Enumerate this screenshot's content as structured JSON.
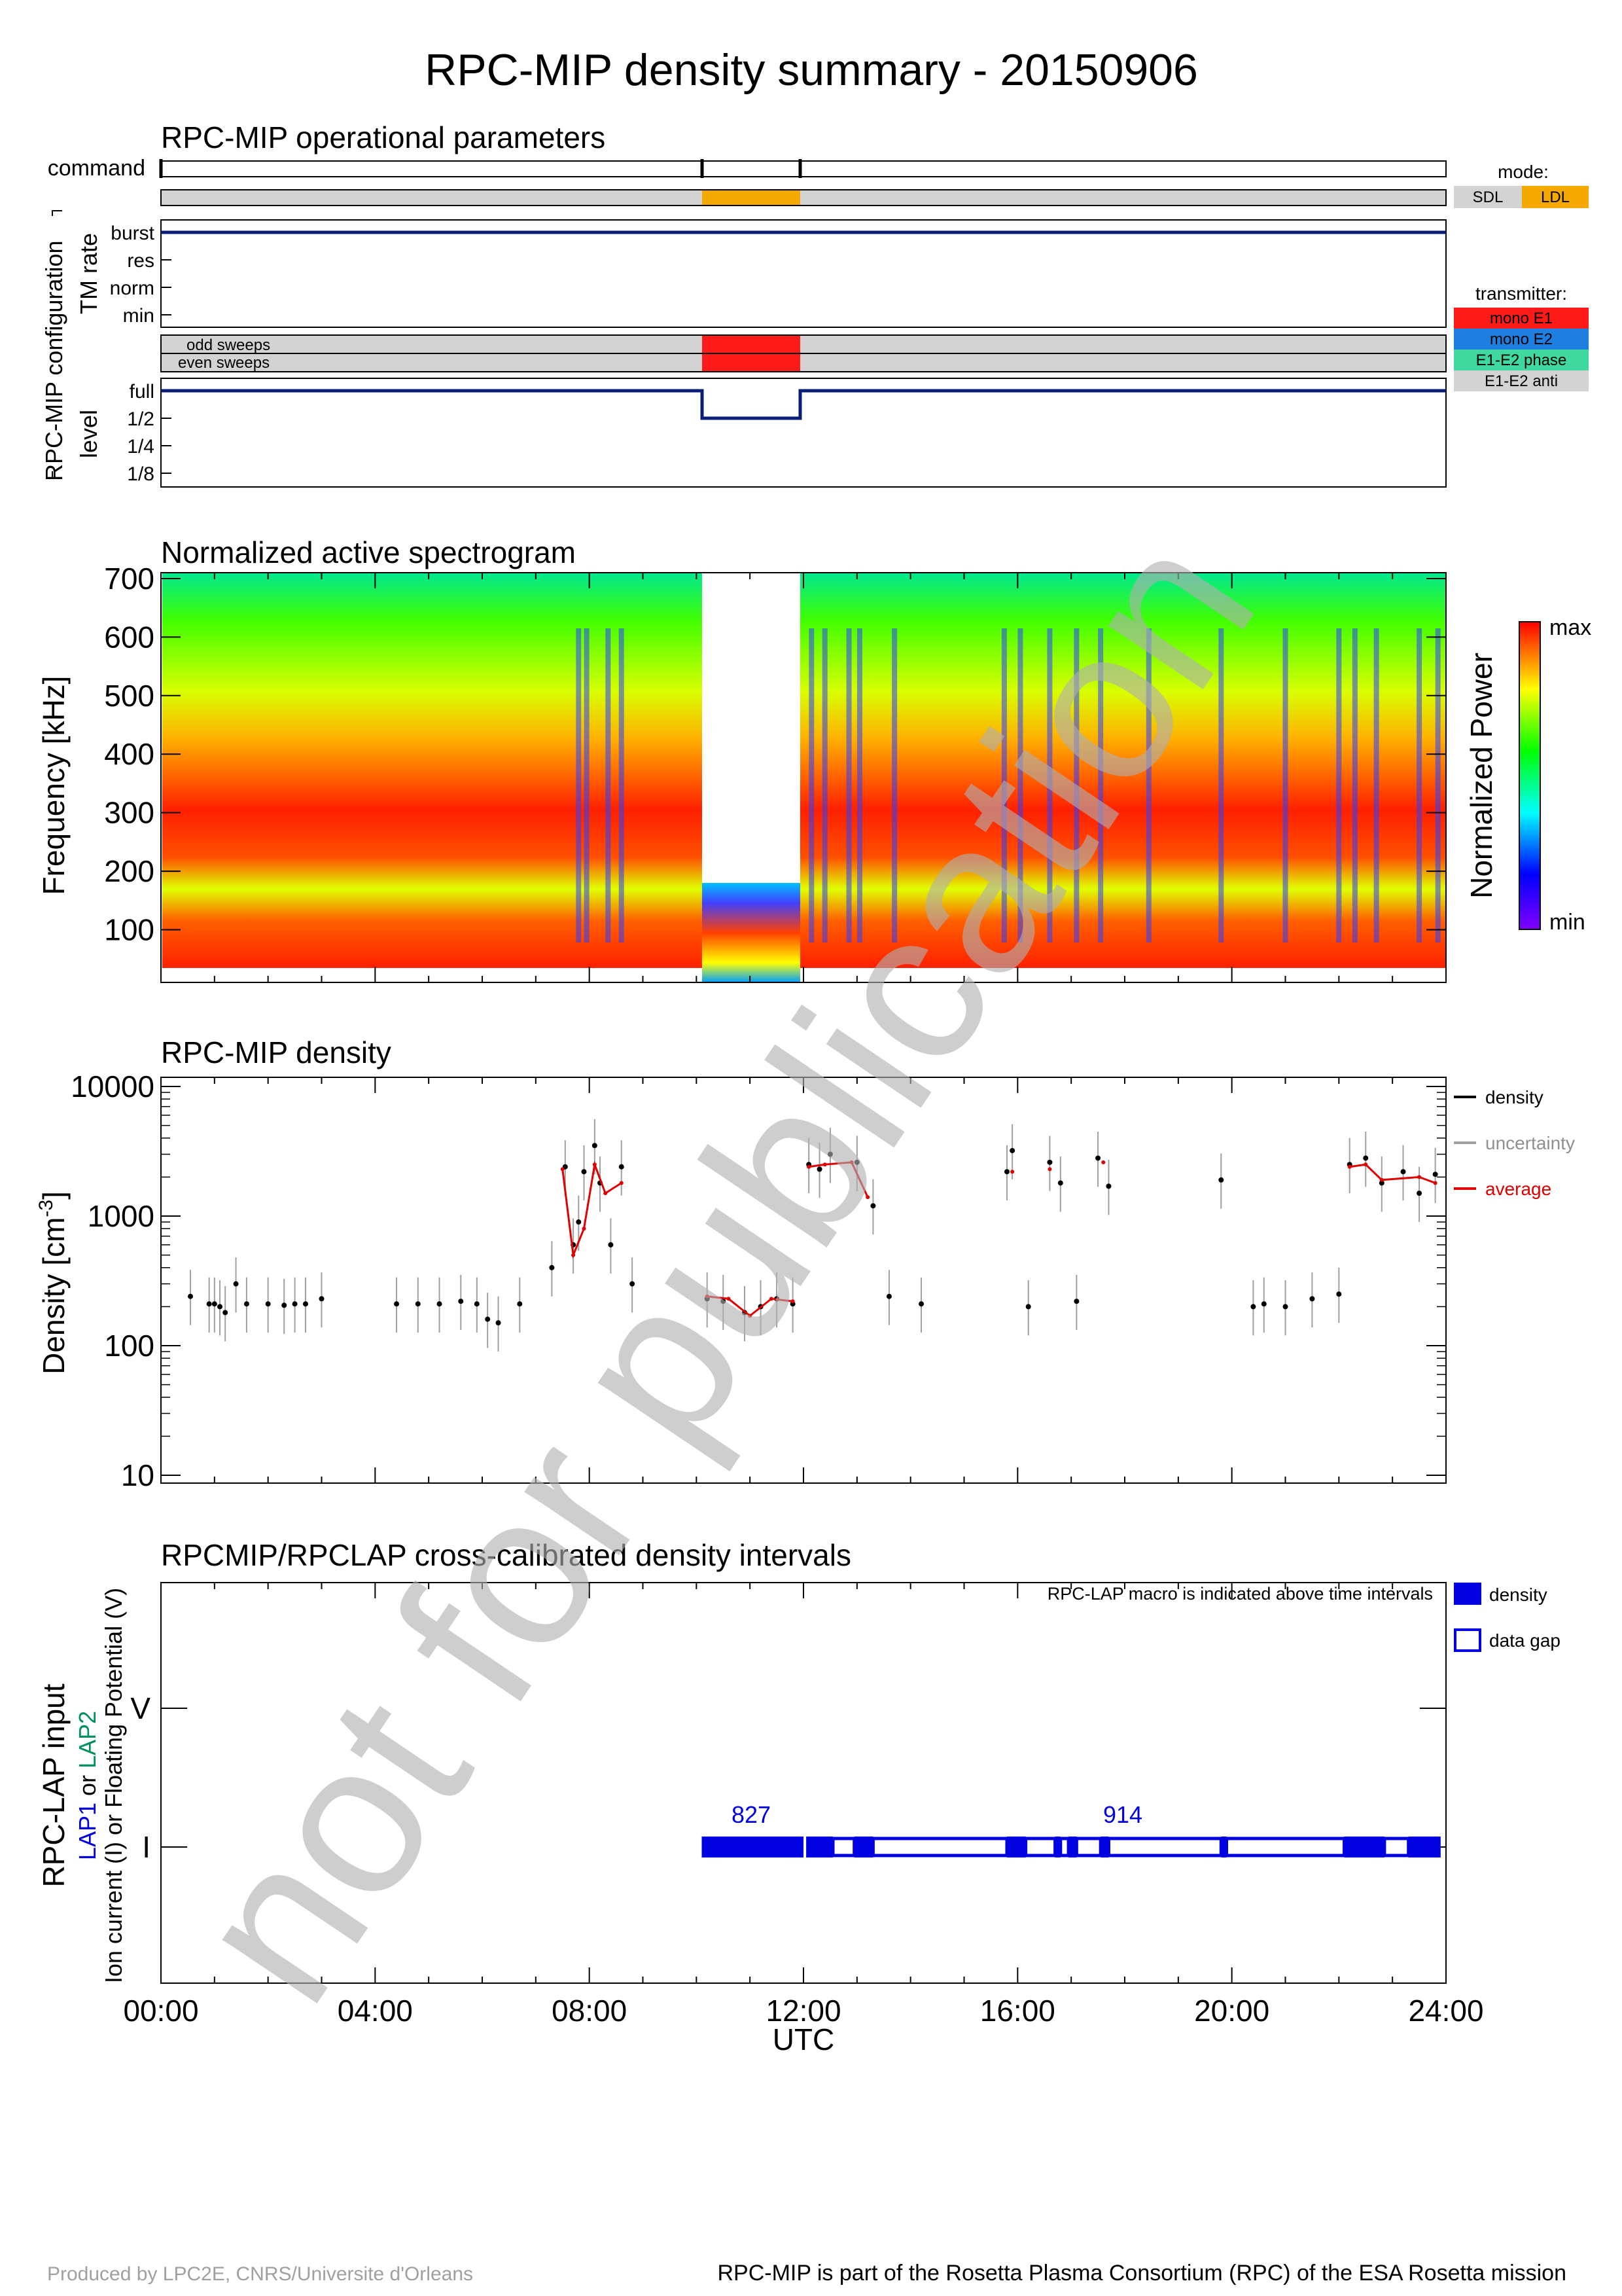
{
  "page": {
    "title": "RPC-MIP density summary - 20150906",
    "footer_left": "Produced by LPC2E, CNRS/Universite d'Orleans",
    "footer_right": "RPC-MIP is part of the Rosetta Plasma Consortium (RPC) of the ESA Rosetta mission",
    "watermark": "not for publication"
  },
  "ops": {
    "title": "RPC-MIP operational parameters",
    "command_label": "command",
    "config_label": "RPC-MIP configuration",
    "tm_rate_label": "TM rate",
    "tm_levels": [
      "burst",
      "res",
      "norm",
      "min"
    ],
    "sweeps": [
      "odd sweeps",
      "even sweeps"
    ],
    "level_label": "level",
    "level_levels": [
      "full",
      "1/2",
      "1/4",
      "1/8"
    ],
    "mode_title": "mode:",
    "modes": [
      "SDL",
      "LDL"
    ],
    "transmitter_title": "transmitter:",
    "transmitters": [
      "mono E1",
      "mono E2",
      "E1-E2 phase",
      "E1-E2 anti"
    ]
  },
  "spec": {
    "title": "Normalized active spectrogram",
    "ylabel": "Frequency [kHz]",
    "yticks": [
      "100",
      "200",
      "300",
      "400",
      "500",
      "600",
      "700"
    ],
    "colorbar_label": "Normalized Power",
    "cb_max": "max",
    "cb_min": "min"
  },
  "density": {
    "title": "RPC-MIP density",
    "ylabel_main": "Density [cm",
    "ylabel_exp": "-3",
    "ylabel_close": "]",
    "yticks": [
      "10",
      "100",
      "1000",
      "10000"
    ],
    "legend": [
      "density",
      "uncertainty",
      "average"
    ]
  },
  "lap": {
    "title": "RPCMIP/RPCLAP cross-calibrated density intervals",
    "note": "RPC-LAP macro is indicated above time intervals",
    "ylabel1": "RPC-LAP input",
    "ylabel2_a": "LAP1",
    "ylabel2_b": " or ",
    "ylabel2_c": "LAP2",
    "ylabel3": "Ion current (I) or Floating Potential (V)",
    "ytick_v": "V",
    "ytick_i": "I",
    "legend": [
      "density",
      "data gap"
    ],
    "macros": [
      "827",
      "914"
    ]
  },
  "xaxis": {
    "ticks": [
      "00:00",
      "04:00",
      "08:00",
      "12:00",
      "16:00",
      "20:00",
      "24:00"
    ],
    "label": "UTC"
  },
  "chart_data": [
    {
      "type": "timeline",
      "title": "RPC-MIP operational parameters",
      "x_unit": "hours UTC",
      "command_marks_h": [
        10.1,
        12.0
      ],
      "mode_segments": [
        {
          "start": 0,
          "end": 10.1,
          "mode": "SDL"
        },
        {
          "start": 10.1,
          "end": 12.0,
          "mode": "LDL"
        },
        {
          "start": 12.0,
          "end": 24,
          "mode": "SDL"
        }
      ],
      "tm_rate": [
        {
          "start": 0,
          "end": 24,
          "value": "burst"
        }
      ],
      "transmitter": [
        {
          "start": 10.1,
          "end": 12.0,
          "value": "mono E1"
        }
      ],
      "level": [
        {
          "start": 0,
          "end": 10.1,
          "value": "full"
        },
        {
          "start": 10.1,
          "end": 12.0,
          "value": "1/2"
        },
        {
          "start": 12.0,
          "end": 24,
          "value": "full"
        }
      ],
      "colors": {
        "SDL": "#d3d3d3",
        "LDL": "#f5a800",
        "mono E1": "#ff1a1a",
        "mono E2": "#1f7fe0",
        "E1-E2 phase": "#3fd9a0",
        "E1-E2 anti": "#d3d3d3",
        "trace": "#0a1e78"
      }
    },
    {
      "type": "heatmap",
      "title": "Normalized active spectrogram",
      "ylabel": "Frequency [kHz]",
      "ylim": [
        10,
        710
      ],
      "xlim": [
        0,
        24
      ],
      "gaps_h": [
        [
          10.1,
          12.0
        ]
      ],
      "ldl_band_khz": [
        10,
        175
      ],
      "colorscale": [
        "#8000ff",
        "#0000ff",
        "#00ffff",
        "#00ff00",
        "#ffff00",
        "#ff0000"
      ]
    },
    {
      "type": "scatter",
      "title": "RPC-MIP density",
      "ylabel": "Density [cm-3]",
      "yscale": "log",
      "ylim": [
        10,
        10000
      ],
      "xlim": [
        0,
        24
      ],
      "series": [
        {
          "name": "density",
          "color": "#000000",
          "x": [
            0.55,
            0.9,
            1.0,
            1.1,
            1.2,
            1.4,
            1.6,
            2.0,
            2.3,
            2.5,
            2.7,
            3.0,
            4.4,
            4.8,
            5.2,
            5.6,
            5.9,
            6.1,
            6.3,
            6.7,
            7.3,
            7.55,
            7.7,
            7.8,
            7.9,
            8.1,
            8.2,
            8.4,
            8.6,
            8.8,
            10.2,
            10.5,
            10.9,
            11.2,
            11.5,
            11.8,
            12.1,
            12.3,
            12.5,
            13.0,
            13.3,
            13.6,
            14.2,
            15.8,
            15.9,
            16.2,
            16.6,
            16.8,
            17.1,
            17.5,
            17.7,
            19.8,
            20.4,
            20.6,
            21.0,
            21.5,
            22.0,
            22.2,
            22.5,
            22.8,
            23.2,
            23.5,
            23.8
          ],
          "y": [
            240,
            210,
            210,
            200,
            180,
            300,
            210,
            210,
            205,
            210,
            210,
            230,
            210,
            210,
            210,
            220,
            210,
            160,
            150,
            210,
            400,
            2400,
            600,
            900,
            2200,
            3500,
            1800,
            600,
            2400,
            300,
            230,
            220,
            180,
            200,
            230,
            210,
            2500,
            2300,
            3000,
            2600,
            1200,
            240,
            210,
            2200,
            3200,
            200,
            2600,
            1800,
            220,
            2800,
            1700,
            1900,
            200,
            210,
            200,
            230,
            250,
            2500,
            2800,
            1800,
            2200,
            1500,
            2100
          ]
        },
        {
          "name": "average",
          "color": "#e00000",
          "x": [
            7.5,
            7.7,
            7.9,
            8.1,
            8.3,
            8.6,
            10.2,
            10.6,
            11.0,
            11.4,
            11.8,
            12.1,
            12.4,
            12.9,
            13.2,
            15.9,
            16.6,
            17.6,
            22.2,
            22.5,
            22.8,
            23.5,
            23.8
          ],
          "y": [
            2300,
            500,
            800,
            2500,
            1500,
            1800,
            240,
            230,
            170,
            230,
            220,
            2400,
            2500,
            2600,
            1400,
            2200,
            2300,
            2600,
            2400,
            2500,
            1900,
            2000,
            1800
          ]
        }
      ]
    },
    {
      "type": "timeline",
      "title": "RPCMIP/RPCLAP cross-calibrated density intervals",
      "channel": "I",
      "segments_density_h": [
        [
          10.1,
          12.0
        ],
        [
          12.05,
          12.55
        ],
        [
          12.95,
          13.3
        ],
        [
          15.8,
          16.15
        ],
        [
          16.7,
          16.8
        ],
        [
          16.95,
          17.1
        ],
        [
          17.55,
          17.7
        ],
        [
          19.8,
          19.9
        ],
        [
          22.1,
          22.85
        ],
        [
          23.3,
          23.9
        ]
      ],
      "data_gaps_h": [
        [
          12.55,
          12.95
        ],
        [
          13.3,
          15.8
        ],
        [
          16.15,
          16.7
        ],
        [
          16.8,
          16.95
        ],
        [
          17.1,
          17.55
        ],
        [
          17.7,
          19.8
        ],
        [
          19.9,
          22.1
        ],
        [
          22.85,
          23.3
        ]
      ],
      "macro_labels": [
        {
          "text": "827",
          "at_h": 11.0
        },
        {
          "text": "914",
          "at_h": 17.5
        }
      ]
    }
  ]
}
